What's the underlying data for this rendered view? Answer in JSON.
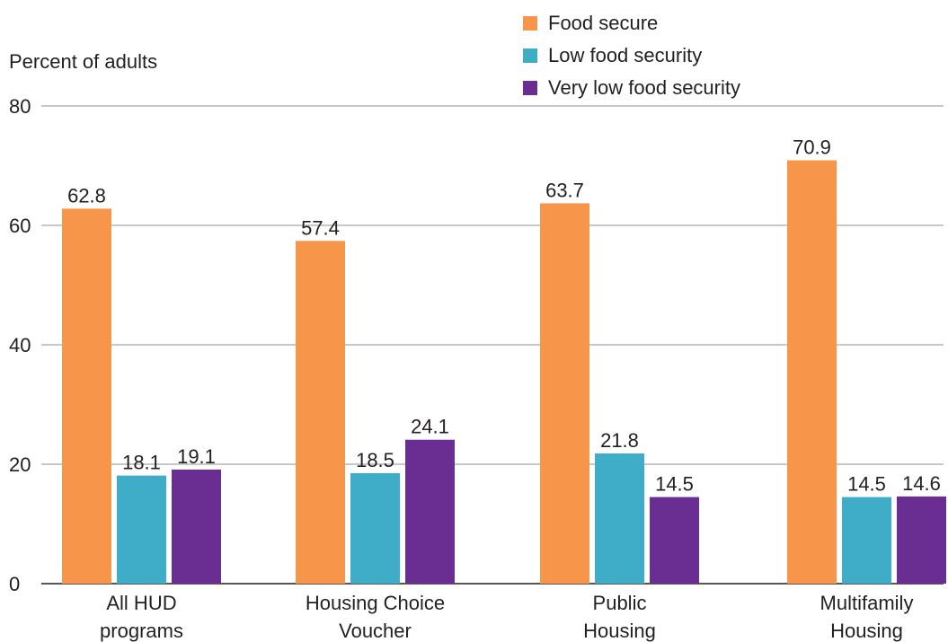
{
  "chart_data": {
    "type": "bar",
    "ylabel": "Percent of adults",
    "ylim": [
      0,
      80
    ],
    "yticks": [
      0,
      20,
      40,
      60,
      80
    ],
    "grid": true,
    "legend_position": "top-right",
    "categories": [
      [
        "All HUD",
        "programs"
      ],
      [
        "Housing Choice",
        "Voucher"
      ],
      [
        "Public",
        "Housing"
      ],
      [
        "Multifamily",
        "Housing"
      ]
    ],
    "series": [
      {
        "name": "Food secure",
        "color": "#f7964a",
        "values": [
          62.8,
          57.4,
          63.7,
          70.9
        ],
        "labels": [
          "62.8",
          "57.4",
          "63.7",
          "70.9"
        ]
      },
      {
        "name": "Low food security",
        "color": "#40adc8",
        "values": [
          18.1,
          18.5,
          21.8,
          14.5
        ],
        "labels": [
          "18.1",
          "18.5",
          "21.8",
          "14.5"
        ]
      },
      {
        "name": "Very low food security",
        "color": "#6a2d91",
        "values": [
          19.1,
          24.1,
          14.5,
          14.6
        ],
        "labels": [
          "19.1",
          "24.1",
          "14.5",
          "14.6"
        ]
      }
    ]
  }
}
